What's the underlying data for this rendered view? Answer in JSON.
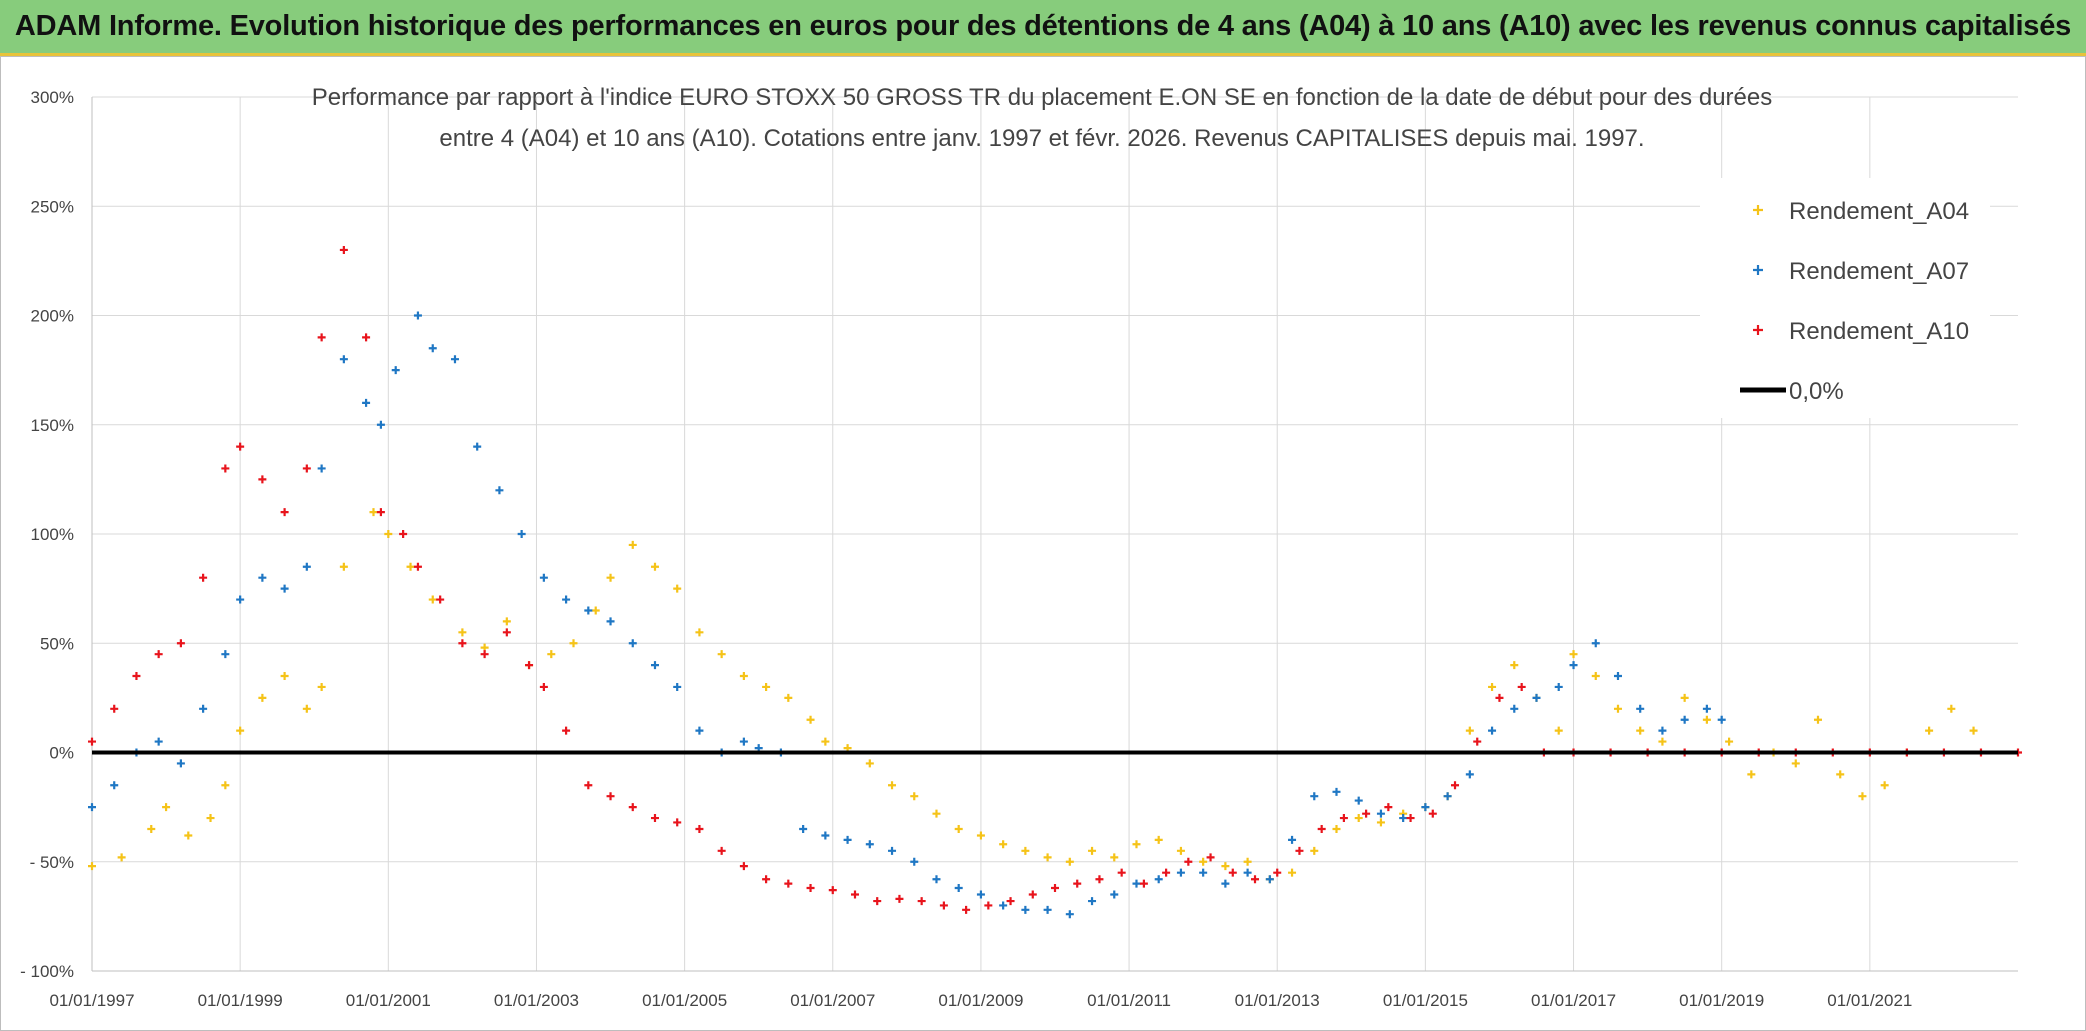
{
  "header": {
    "title": "ADAM Informe. Evolution historique des performances en euros pour des détentions de 4 ans (A04) à 10 ans (A10) avec les revenus connus capitalisés"
  },
  "colors": {
    "header_bg": "#87cc7c",
    "a04": "#f5c318",
    "a07": "#1f77c4",
    "a10": "#e8141c",
    "zero": "#000000",
    "grid": "#d9d9d9"
  },
  "chart_data": {
    "type": "scatter",
    "title_line1": "Performance par rapport à l'indice EURO STOXX 50 GROSS TR  du placement E.ON SE en fonction de la date de début pour des durées",
    "title_line2": "entre 4 (A04) et 10 ans (A10). Cotations entre janv. 1997 et févr. 2026. Revenus CAPITALISES depuis mai. 1997.",
    "x_ticks": [
      "01/01/1997",
      "01/01/1999",
      "01/01/2001",
      "01/01/2003",
      "01/01/2005",
      "01/01/2007",
      "01/01/2009",
      "01/01/2011",
      "01/01/2013",
      "01/01/2015",
      "01/01/2017",
      "01/01/2019",
      "01/01/2021"
    ],
    "xlim": [
      1997.0,
      2023.0
    ],
    "y_ticks": [
      "300%",
      "250%",
      "200%",
      "150%",
      "100%",
      "50%",
      "0%",
      "- 50%",
      "- 100%"
    ],
    "ylim": [
      -100,
      300
    ],
    "grid": true,
    "legend_position": "top-right",
    "legend": [
      {
        "label": "Rendement_A04",
        "marker": "plus",
        "color": "#f5c318"
      },
      {
        "label": "Rendement_A07",
        "marker": "plus",
        "color": "#1f77c4"
      },
      {
        "label": "Rendement_A10",
        "marker": "plus",
        "color": "#e8141c"
      },
      {
        "label": "0,0%",
        "marker": "line",
        "color": "#000000"
      }
    ],
    "series": [
      {
        "name": "Rendement_A04",
        "color": "#f5c318",
        "x": [
          1997.0,
          1997.4,
          1997.8,
          1998.0,
          1998.3,
          1998.6,
          1998.8,
          1999.0,
          1999.3,
          1999.6,
          1999.9,
          2000.1,
          2000.4,
          2000.8,
          2001.0,
          2001.3,
          2001.6,
          2002.0,
          2002.3,
          2002.6,
          2002.9,
          2003.2,
          2003.5,
          2003.8,
          2004.0,
          2004.3,
          2004.6,
          2004.9,
          2005.2,
          2005.5,
          2005.8,
          2006.1,
          2006.4,
          2006.7,
          2006.9,
          2007.2,
          2007.5,
          2007.8,
          2008.1,
          2008.4,
          2008.7,
          2009.0,
          2009.3,
          2009.6,
          2009.9,
          2010.2,
          2010.5,
          2010.8,
          2011.1,
          2011.4,
          2011.7,
          2012.0,
          2012.3,
          2012.6,
          2012.9,
          2013.2,
          2013.5,
          2013.8,
          2014.1,
          2014.4,
          2014.7,
          2015.0,
          2015.3,
          2015.6,
          2015.9,
          2016.2,
          2016.5,
          2016.8,
          2017.0,
          2017.3,
          2017.6,
          2017.9,
          2018.2,
          2018.5,
          2018.8,
          2019.1,
          2019.4,
          2019.7,
          2020.0,
          2020.3,
          2020.6,
          2020.9,
          2021.2,
          2021.5,
          2021.8,
          2022.1,
          2022.4
        ],
        "values": [
          -52,
          -48,
          -35,
          -25,
          -38,
          -30,
          -15,
          10,
          25,
          35,
          20,
          30,
          85,
          110,
          100,
          85,
          70,
          55,
          48,
          60,
          40,
          45,
          50,
          65,
          80,
          95,
          85,
          75,
          55,
          45,
          35,
          30,
          25,
          15,
          5,
          2,
          -5,
          -15,
          -20,
          -28,
          -35,
          -38,
          -42,
          -45,
          -48,
          -50,
          -45,
          -48,
          -42,
          -40,
          -45,
          -50,
          -52,
          -50,
          -58,
          -55,
          -45,
          -35,
          -30,
          -32,
          -28,
          -25,
          -20,
          10,
          30,
          40,
          25,
          10,
          45,
          35,
          20,
          10,
          5,
          25,
          15,
          5,
          -10,
          0,
          -5,
          15,
          -10,
          -20,
          -15,
          0,
          10,
          20,
          10
        ]
      },
      {
        "name": "Rendement_A07",
        "color": "#1f77c4",
        "x": [
          1997.0,
          1997.3,
          1997.6,
          1997.9,
          1998.2,
          1998.5,
          1998.8,
          1999.0,
          1999.3,
          1999.6,
          1999.9,
          2000.1,
          2000.4,
          2000.7,
          2000.9,
          2001.1,
          2001.4,
          2001.6,
          2001.9,
          2002.2,
          2002.5,
          2002.8,
          2003.1,
          2003.4,
          2003.7,
          2004.0,
          2004.3,
          2004.6,
          2004.9,
          2005.2,
          2005.5,
          2005.8,
          2006.0,
          2006.3,
          2006.6,
          2006.9,
          2007.2,
          2007.5,
          2007.8,
          2008.1,
          2008.4,
          2008.7,
          2009.0,
          2009.3,
          2009.6,
          2009.9,
          2010.2,
          2010.5,
          2010.8,
          2011.1,
          2011.4,
          2011.7,
          2012.0,
          2012.3,
          2012.6,
          2012.9,
          2013.2,
          2013.5,
          2013.8,
          2014.1,
          2014.4,
          2014.7,
          2015.0,
          2015.3,
          2015.6,
          2015.9,
          2016.2,
          2016.5,
          2016.8,
          2017.0,
          2017.3,
          2017.6,
          2017.9,
          2018.2,
          2018.5,
          2018.8,
          2019.0
        ],
        "values": [
          -25,
          -15,
          0,
          5,
          -5,
          20,
          45,
          70,
          80,
          75,
          85,
          130,
          180,
          160,
          150,
          175,
          200,
          185,
          180,
          140,
          120,
          100,
          80,
          70,
          65,
          60,
          50,
          40,
          30,
          10,
          0,
          5,
          2,
          0,
          -35,
          -38,
          -40,
          -42,
          -45,
          -50,
          -58,
          -62,
          -65,
          -70,
          -72,
          -72,
          -74,
          -68,
          -65,
          -60,
          -58,
          -55,
          -55,
          -60,
          -55,
          -58,
          -40,
          -20,
          -18,
          -22,
          -28,
          -30,
          -25,
          -20,
          -10,
          10,
          20,
          25,
          30,
          40,
          50,
          35,
          20,
          10,
          15,
          20,
          15
        ]
      },
      {
        "name": "Rendement_A10",
        "color": "#e8141c",
        "x": [
          1997.0,
          1997.3,
          1997.6,
          1997.9,
          1998.2,
          1998.5,
          1998.8,
          1999.0,
          1999.3,
          1999.6,
          1999.9,
          2000.1,
          2000.4,
          2000.7,
          2000.9,
          2001.2,
          2001.4,
          2001.7,
          2002.0,
          2002.3,
          2002.6,
          2002.9,
          2003.1,
          2003.4,
          2003.7,
          2004.0,
          2004.3,
          2004.6,
          2004.9,
          2005.2,
          2005.5,
          2005.8,
          2006.1,
          2006.4,
          2006.7,
          2007.0,
          2007.3,
          2007.6,
          2007.9,
          2008.2,
          2008.5,
          2008.8,
          2009.1,
          2009.4,
          2009.7,
          2010.0,
          2010.3,
          2010.6,
          2010.9,
          2011.2,
          2011.5,
          2011.8,
          2012.1,
          2012.4,
          2012.7,
          2013.0,
          2013.3,
          2013.6,
          2013.9,
          2014.2,
          2014.5,
          2014.8,
          2015.1,
          2015.4,
          2015.7,
          2016.0,
          2016.3,
          2016.6,
          2017.0,
          2017.5,
          2018.0,
          2018.5,
          2019.0,
          2019.5,
          2020.0,
          2020.5,
          2021.0,
          2021.5,
          2022.0,
          2022.5,
          2023.0
        ],
        "values": [
          5,
          20,
          35,
          45,
          50,
          80,
          130,
          140,
          125,
          110,
          130,
          190,
          230,
          190,
          110,
          100,
          85,
          70,
          50,
          45,
          55,
          40,
          30,
          10,
          -15,
          -20,
          -25,
          -30,
          -32,
          -35,
          -45,
          -52,
          -58,
          -60,
          -62,
          -63,
          -65,
          -68,
          -67,
          -68,
          -70,
          -72,
          -70,
          -68,
          -65,
          -62,
          -60,
          -58,
          -55,
          -60,
          -55,
          -50,
          -48,
          -55,
          -58,
          -55,
          -45,
          -35,
          -30,
          -28,
          -25,
          -30,
          -28,
          -15,
          5,
          25,
          30,
          0,
          0,
          0,
          0,
          0,
          0,
          0,
          0,
          0,
          0,
          0,
          0,
          0,
          0
        ]
      }
    ]
  }
}
